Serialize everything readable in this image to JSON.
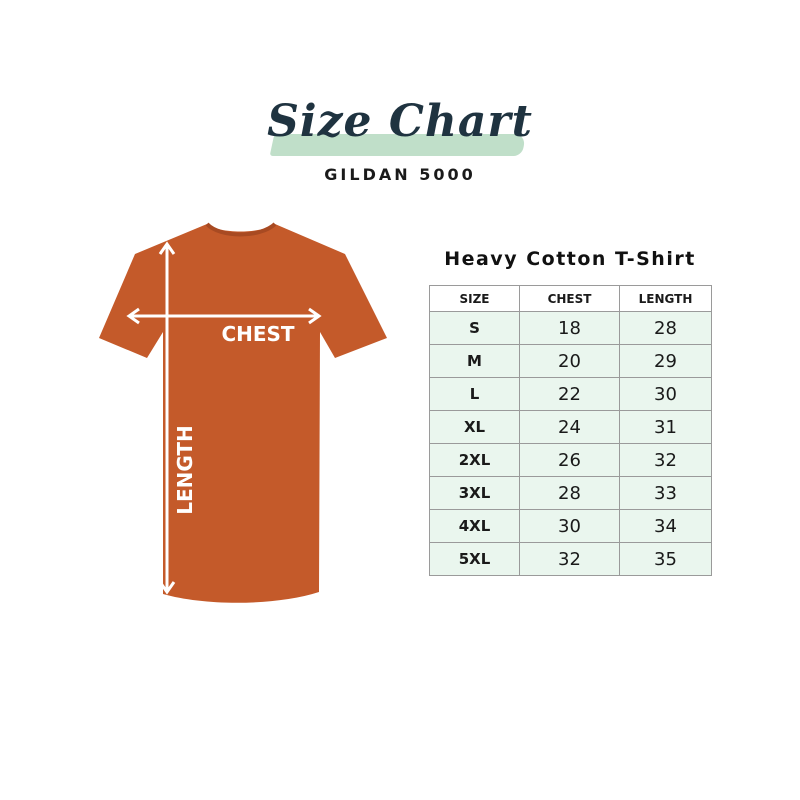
{
  "header": {
    "title": "Size Chart",
    "subtitle": "GILDAN 5000"
  },
  "shirt": {
    "color": "#c45a2a",
    "chest_label": "CHEST",
    "length_label": "LENGTH"
  },
  "table": {
    "title": "Heavy Cotton T-Shirt",
    "columns": [
      "SIZE",
      "CHEST",
      "LENGTH"
    ],
    "rows": [
      [
        "S",
        "18",
        "28"
      ],
      [
        "M",
        "20",
        "29"
      ],
      [
        "L",
        "22",
        "30"
      ],
      [
        "XL",
        "24",
        "31"
      ],
      [
        "2XL",
        "26",
        "32"
      ],
      [
        "3XL",
        "28",
        "33"
      ],
      [
        "4XL",
        "30",
        "34"
      ],
      [
        "5XL",
        "32",
        "35"
      ]
    ],
    "row_color": "#eaf6ee"
  }
}
